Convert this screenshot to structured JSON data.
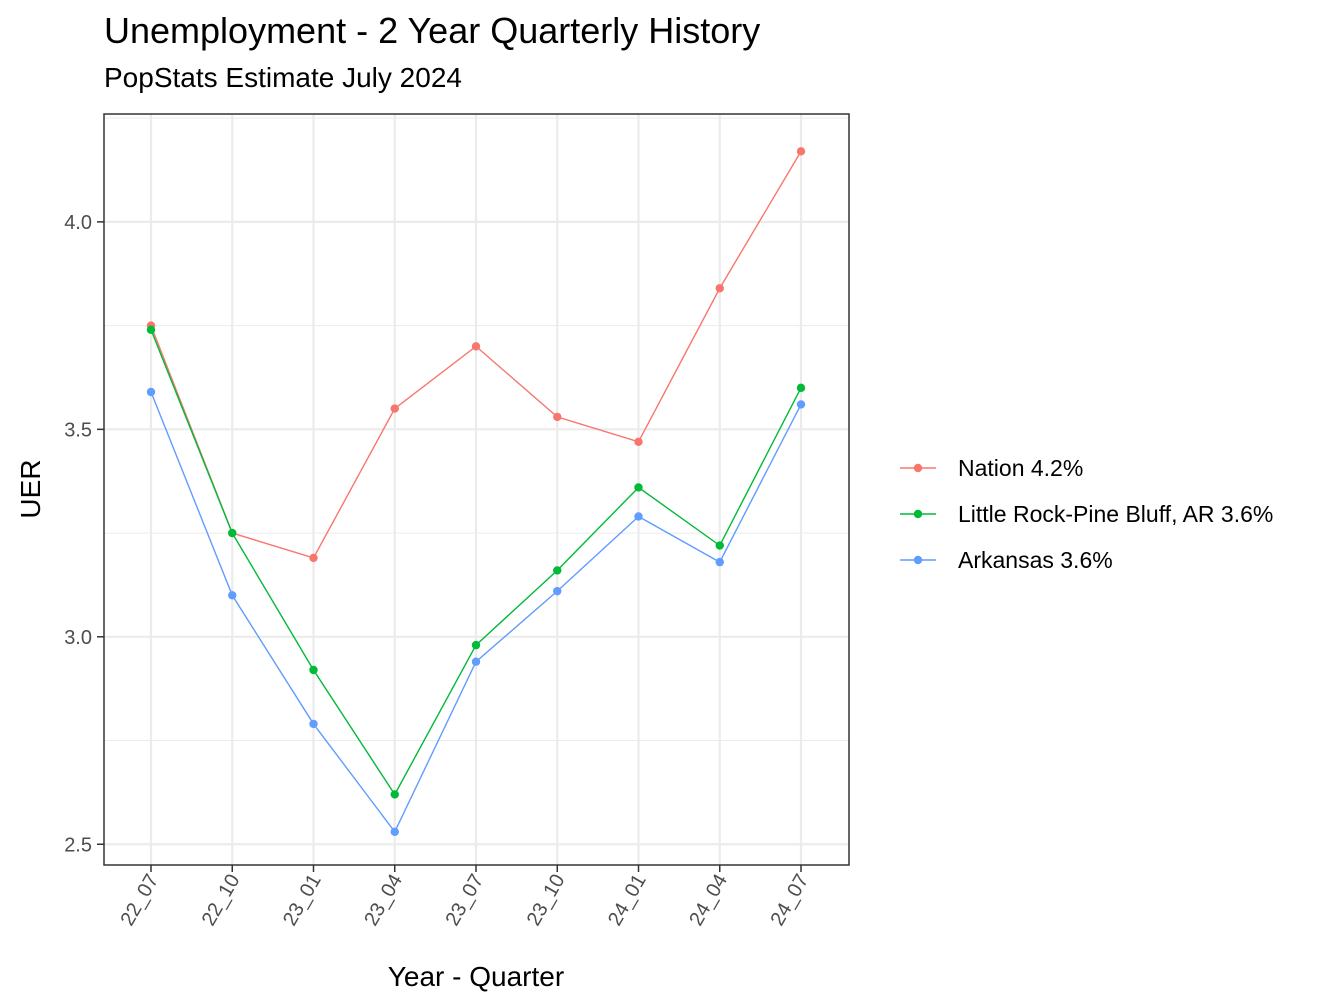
{
  "chart_data": {
    "type": "line",
    "title": "Unemployment - 2 Year Quarterly History",
    "subtitle": "PopStats Estimate July 2024",
    "xlabel": "Year - Quarter",
    "ylabel": "UER",
    "categories": [
      "22_07",
      "22_10",
      "23_01",
      "23_04",
      "23_07",
      "23_10",
      "24_01",
      "24_04",
      "24_07"
    ],
    "ylim": [
      2.45,
      4.26
    ],
    "yticks": [
      2.5,
      3.0,
      3.5,
      4.0
    ],
    "ytick_labels": [
      "2.5",
      "3.0",
      "3.5",
      "4.0"
    ],
    "grid": true,
    "legend_position": "right",
    "series": [
      {
        "name": "Nation 4.2%",
        "color": "#F8766D",
        "values": [
          3.75,
          3.25,
          3.19,
          3.55,
          3.7,
          3.53,
          3.47,
          3.84,
          4.17
        ]
      },
      {
        "name": "Little Rock-Pine Bluff, AR 3.6%",
        "color": "#00BA38",
        "values": [
          3.74,
          3.25,
          2.92,
          2.62,
          2.98,
          3.16,
          3.36,
          3.22,
          3.6
        ]
      },
      {
        "name": "Arkansas 3.6%",
        "color": "#619CFF",
        "values": [
          3.59,
          3.1,
          2.79,
          2.53,
          2.94,
          3.11,
          3.29,
          3.18,
          3.56
        ]
      }
    ]
  }
}
